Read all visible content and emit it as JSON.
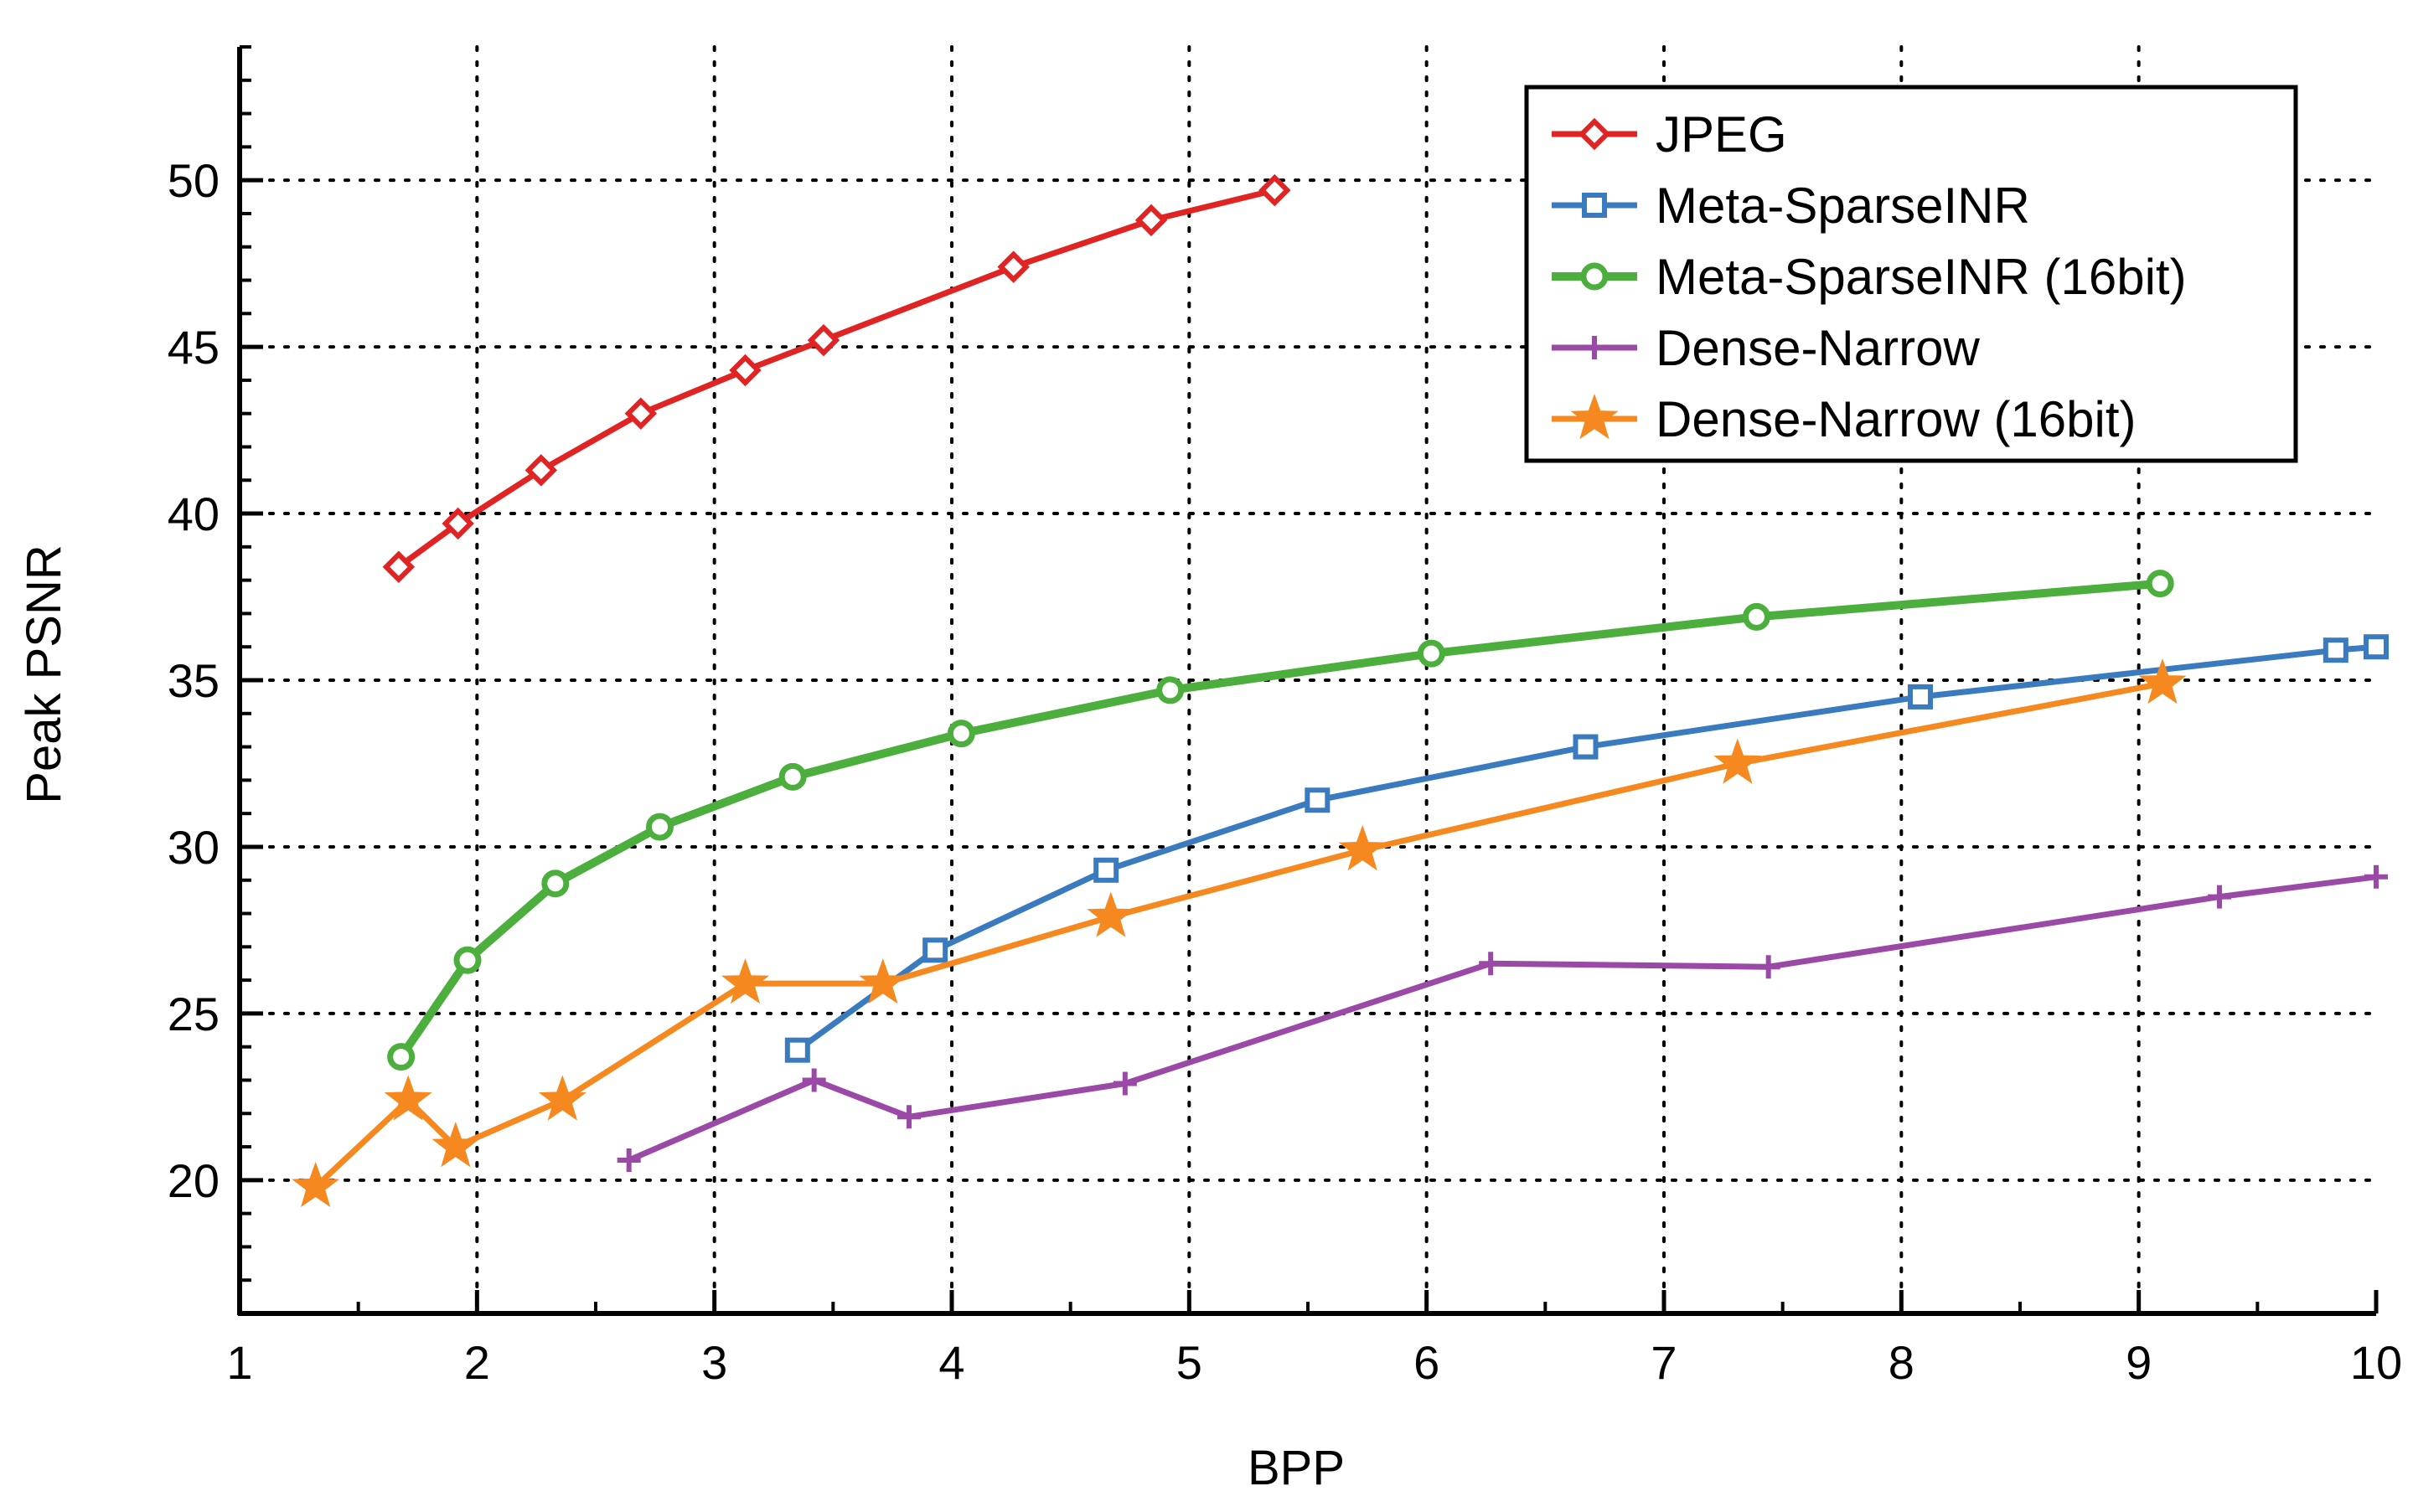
{
  "chart_data": {
    "type": "line",
    "title": "",
    "xlabel": "BPP",
    "ylabel": "Peak PSNR",
    "xlim": [
      1,
      10
    ],
    "ylim": [
      16,
      54
    ],
    "xticks": [
      1,
      2,
      3,
      4,
      5,
      6,
      7,
      8,
      9,
      10
    ],
    "xtick_labels": [
      "1",
      "2",
      "3",
      "4",
      "5",
      "6",
      "7",
      "8",
      "9",
      "10"
    ],
    "yticks": [
      20,
      25,
      30,
      35,
      40,
      45,
      50
    ],
    "ytick_labels": [
      "20",
      "25",
      "30",
      "35",
      "40",
      "45",
      "50"
    ],
    "grid": true,
    "legend_position": "top-right",
    "series": [
      {
        "name": "JPEG",
        "color": "#e02424",
        "marker": "diamond-open",
        "x": [
          1.67,
          1.92,
          2.27,
          2.69,
          3.13,
          3.46,
          4.26,
          4.84,
          5.36
        ],
        "y": [
          38.4,
          39.7,
          41.3,
          43.0,
          44.3,
          45.2,
          47.4,
          48.8,
          49.7
        ]
      },
      {
        "name": "Meta-SparseINR",
        "color": "#3a7bbf",
        "marker": "square-open",
        "x": [
          3.35,
          3.93,
          4.65,
          5.54,
          6.67,
          8.08,
          9.83,
          10.0
        ],
        "y": [
          23.9,
          26.9,
          29.3,
          31.4,
          33.0,
          34.5,
          35.9,
          36.0
        ]
      },
      {
        "name": "Meta-SparseINR (16bit)",
        "color": "#4caf3d",
        "marker": "circle-open",
        "x": [
          1.68,
          1.96,
          2.33,
          2.77,
          3.33,
          4.04,
          4.92,
          6.02,
          7.39,
          9.09
        ],
        "y": [
          23.7,
          26.6,
          28.9,
          30.6,
          32.1,
          33.4,
          34.7,
          35.8,
          36.9,
          37.9
        ]
      },
      {
        "name": "Dense-Narrow",
        "color": "#9a4aa6",
        "marker": "plus",
        "x": [
          2.64,
          3.42,
          3.82,
          4.73,
          6.27,
          7.44,
          9.34,
          10.0
        ],
        "y": [
          20.6,
          23.0,
          21.9,
          22.9,
          26.5,
          26.4,
          28.5,
          29.1
        ]
      },
      {
        "name": "Dense-Narrow (16bit)",
        "color": "#f5891f",
        "marker": "star",
        "x": [
          1.32,
          1.71,
          1.91,
          2.36,
          3.13,
          3.71,
          4.67,
          5.73,
          7.31,
          9.1
        ],
        "y": [
          19.8,
          22.4,
          21.0,
          22.4,
          25.9,
          25.9,
          27.9,
          29.9,
          32.5,
          34.9
        ]
      }
    ]
  }
}
